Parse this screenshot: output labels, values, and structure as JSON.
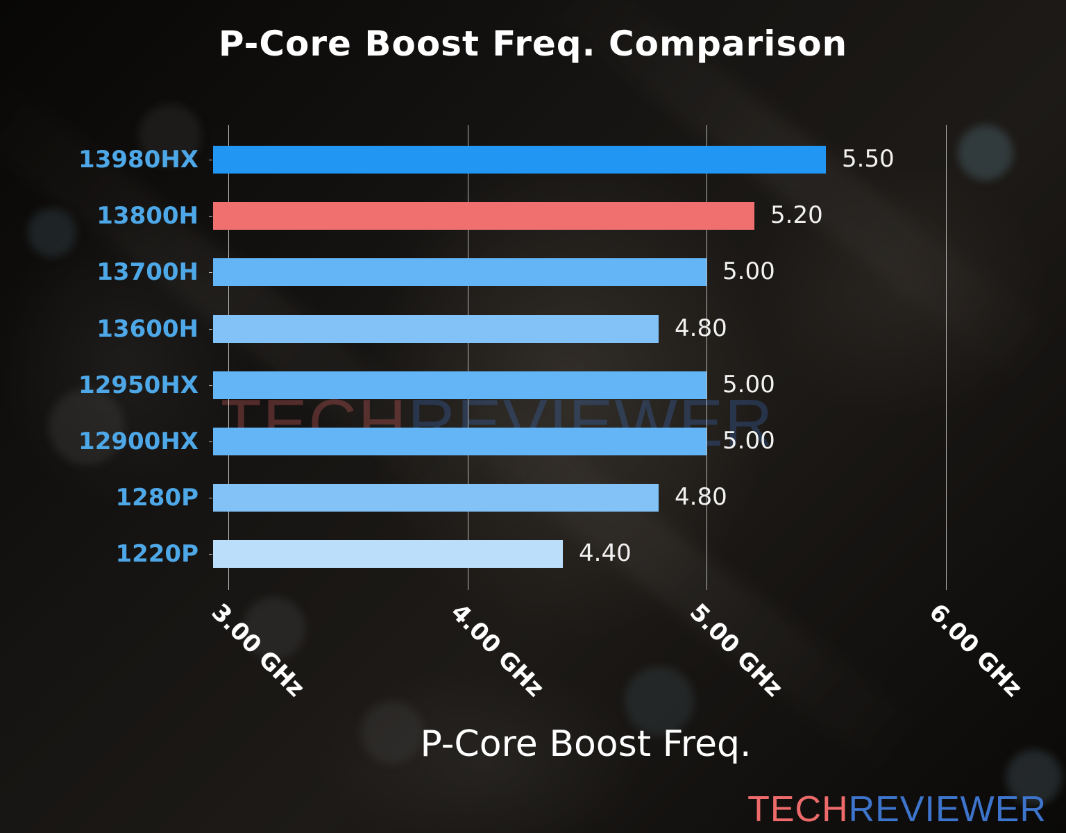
{
  "chart_data": {
    "type": "bar",
    "orientation": "horizontal",
    "title": "P-Core Boost Freq. Comparison",
    "xlabel": "P-Core Boost Freq.",
    "ylabel": "",
    "categories": [
      "13980HX",
      "13800H",
      "13700H",
      "13600H",
      "12950HX",
      "12900HX",
      "1280P",
      "1220P"
    ],
    "values": [
      5.5,
      5.2,
      5.0,
      4.8,
      5.0,
      5.0,
      4.8,
      4.4
    ],
    "value_labels": [
      "5.50",
      "5.20",
      "5.00",
      "4.80",
      "5.00",
      "5.00",
      "4.80",
      "4.40"
    ],
    "bar_colors": [
      "#2196f3",
      "#f07070",
      "#64b5f6",
      "#82c2f7",
      "#64b5f6",
      "#64b5f6",
      "#82c2f7",
      "#bbdefb"
    ],
    "x_ticks": [
      3.0,
      4.0,
      5.0,
      6.0
    ],
    "x_tick_labels": [
      "3.00 GHz",
      "4.00 GHz",
      "5.00 GHz",
      "6.00 GHz"
    ],
    "xlim": [
      2.936,
      6.0
    ],
    "grid": "vertical",
    "legend": "none",
    "highlighted_category": "13800H"
  },
  "colors": {
    "category_label": "#4ea8e8",
    "highlight": "#f07070",
    "brand_red": "#ef6b6b",
    "brand_blue": "#3d74cc"
  },
  "branding": {
    "logo_part1": "TECH",
    "logo_part2": "REVIEWER",
    "watermark_part1": "TECH",
    "watermark_part2": "REVIEWER"
  }
}
